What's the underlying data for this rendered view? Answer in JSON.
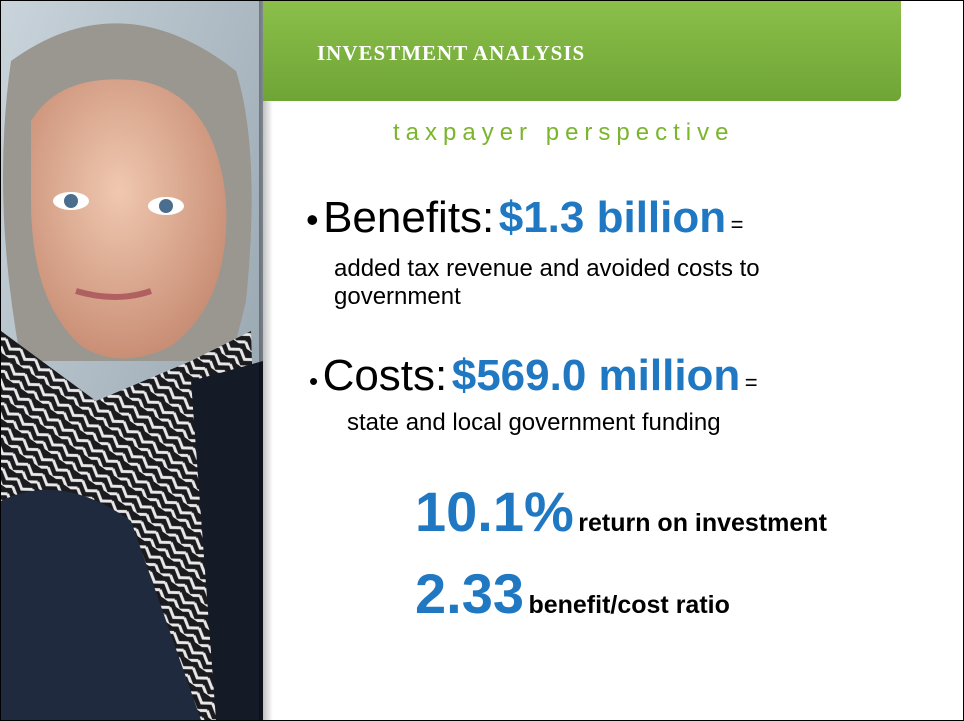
{
  "header": {
    "title": "INVESTMENT ANALYSIS",
    "subtitle": "taxpayer perspective"
  },
  "bullets": [
    {
      "label": "Benefits:",
      "amount": "$1.3 billion",
      "separator": "=",
      "description": "added tax revenue and avoided costs to government"
    },
    {
      "label": "Costs:",
      "amount": "$569.0 million",
      "separator": "=",
      "description": "state and local government funding"
    }
  ],
  "metrics": [
    {
      "value": "10.1%",
      "label": "return on investment"
    },
    {
      "value": "2.33",
      "label": "benefit/cost ratio"
    }
  ]
}
